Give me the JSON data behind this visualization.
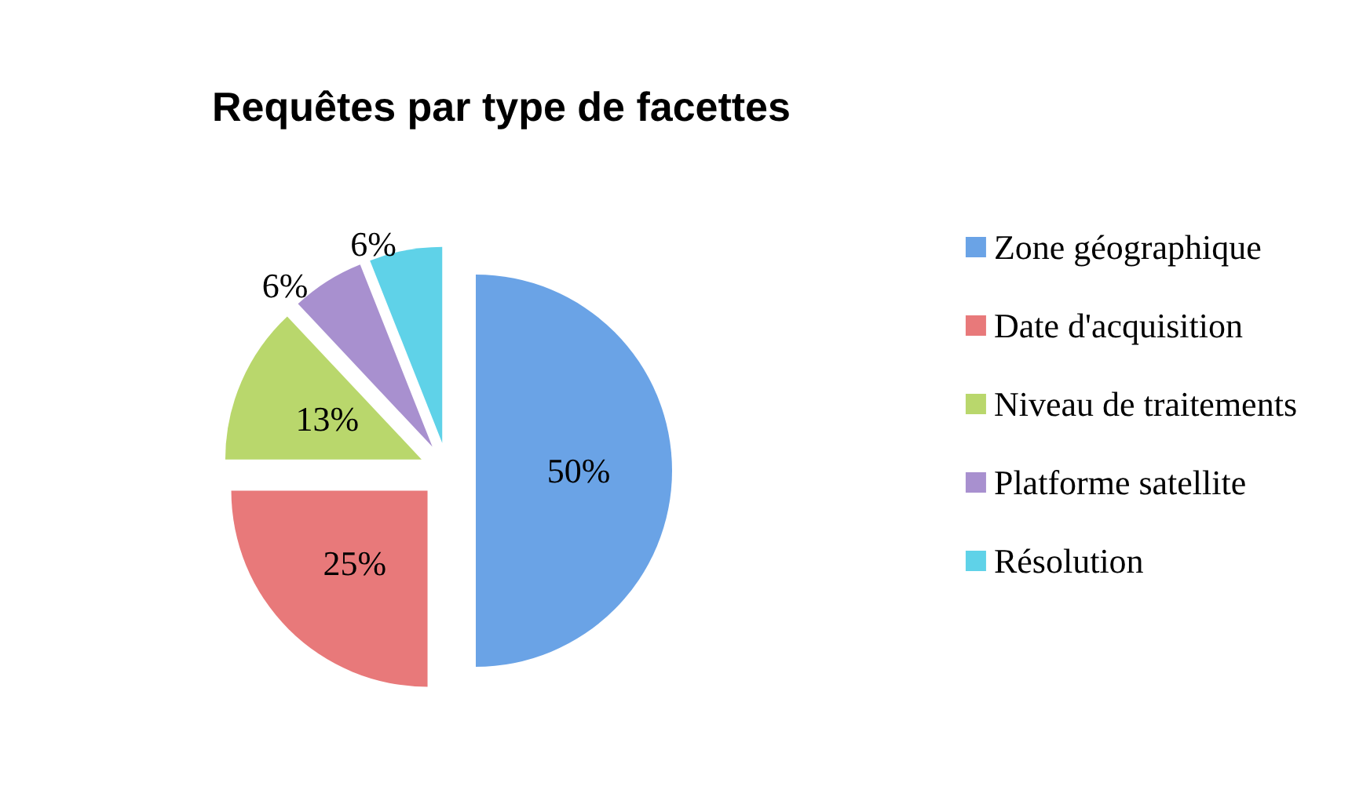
{
  "chart_data": {
    "type": "pie",
    "title": "Requêtes par type de facettes",
    "categories": [
      "Zone géographique",
      "Date d'acquisition",
      "Niveau de traitements",
      "Platforme satellite",
      "Résolution"
    ],
    "values": [
      50,
      25,
      13,
      6,
      6
    ],
    "value_labels": [
      "50%",
      "25%",
      "13%",
      "6%",
      "6%"
    ],
    "colors": [
      "#6aa3e6",
      "#e8797a",
      "#b9d76c",
      "#a890cf",
      "#5fd2e8"
    ],
    "legend": "right"
  }
}
